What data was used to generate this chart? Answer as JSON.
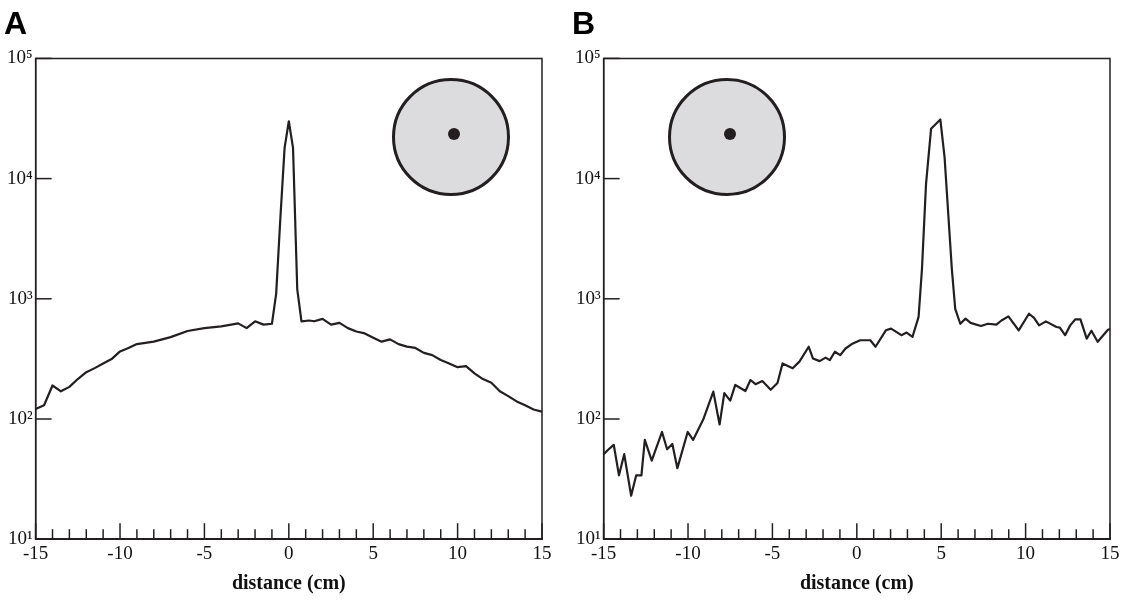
{
  "chart_data": [
    {
      "type": "line",
      "title": "A",
      "xlabel": "distance (cm)",
      "xlim": [
        -15,
        15
      ],
      "ylim": [
        10,
        100000
      ],
      "log": "y",
      "grid": false,
      "legend": false,
      "marker": "none",
      "line_style": "solid",
      "xticks": [
        -15,
        {
          "value": -14,
          "label": null
        },
        {
          "value": -13,
          "label": null
        },
        {
          "value": -12,
          "label": null
        },
        {
          "value": -11,
          "label": null
        },
        -10,
        {
          "value": -9,
          "label": null
        },
        {
          "value": -8,
          "label": null
        },
        {
          "value": -7,
          "label": null
        },
        {
          "value": -6,
          "label": null
        },
        -5,
        {
          "value": -4,
          "label": null
        },
        {
          "value": -3,
          "label": null
        },
        {
          "value": -2,
          "label": null
        },
        {
          "value": -1,
          "label": null
        },
        0,
        {
          "value": 1,
          "label": null
        },
        {
          "value": 2,
          "label": null
        },
        {
          "value": 3,
          "label": null
        },
        {
          "value": 4,
          "label": null
        },
        5,
        {
          "value": 6,
          "label": null
        },
        {
          "value": 7,
          "label": null
        },
        {
          "value": 8,
          "label": null
        },
        {
          "value": 9,
          "label": null
        },
        10,
        {
          "value": 11,
          "label": null
        },
        {
          "value": 12,
          "label": null
        },
        {
          "value": 13,
          "label": null
        },
        {
          "value": 14,
          "label": null
        },
        15
      ],
      "yticks": [
        {
          "value": 10,
          "label": "10¹"
        },
        {
          "value": 100,
          "label": "10²"
        },
        {
          "value": 1000,
          "label": "10³"
        },
        {
          "value": 10000,
          "label": "10⁴"
        },
        {
          "value": 100000,
          "label": "10⁵"
        }
      ],
      "series": [
        {
          "color": "#231f20",
          "x": [
            -15,
            -14.5,
            -14,
            -13.5,
            -13,
            -12.5,
            -12,
            -11.5,
            -11,
            -10.5,
            -10,
            -9.5,
            -9,
            -8,
            -7,
            -6,
            -5,
            -4,
            -3,
            -2.5,
            -2,
            -1.5,
            -1,
            -0.75,
            -0.5,
            -0.25,
            0,
            0.25,
            0.5,
            0.75,
            1.2,
            1.5,
            2,
            2.5,
            3,
            3.5,
            4,
            4.5,
            5,
            5.5,
            6,
            6.5,
            7,
            7.5,
            8,
            8.5,
            9,
            9.5,
            10,
            10.5,
            11,
            11.5,
            12,
            12.5,
            13,
            13.5,
            14,
            14.5,
            15
          ],
          "values": [
            121,
            130,
            190,
            170,
            185,
            215,
            245,
            265,
            290,
            315,
            365,
            390,
            420,
            440,
            480,
            540,
            570,
            590,
            625,
            570,
            650,
            610,
            620,
            1100,
            4700,
            18000,
            30000,
            18000,
            1200,
            650,
            660,
            650,
            680,
            610,
            630,
            570,
            535,
            515,
            475,
            440,
            460,
            420,
            400,
            390,
            355,
            340,
            310,
            290,
            270,
            275,
            240,
            215,
            200,
            170,
            155,
            140,
            130,
            120,
            115
          ]
        }
      ]
    },
    {
      "type": "line",
      "title": "B",
      "xlabel": "distance (cm)",
      "xlim": [
        -15,
        15
      ],
      "ylim": [
        10,
        100000
      ],
      "log": "y",
      "grid": false,
      "legend": false,
      "marker": "none",
      "line_style": "solid",
      "xticks": [
        -15,
        {
          "value": -14,
          "label": null
        },
        {
          "value": -13,
          "label": null
        },
        {
          "value": -12,
          "label": null
        },
        {
          "value": -11,
          "label": null
        },
        -10,
        {
          "value": -9,
          "label": null
        },
        {
          "value": -8,
          "label": null
        },
        {
          "value": -7,
          "label": null
        },
        {
          "value": -6,
          "label": null
        },
        -5,
        {
          "value": -4,
          "label": null
        },
        {
          "value": -3,
          "label": null
        },
        {
          "value": -2,
          "label": null
        },
        {
          "value": -1,
          "label": null
        },
        0,
        {
          "value": 1,
          "label": null
        },
        {
          "value": 2,
          "label": null
        },
        {
          "value": 3,
          "label": null
        },
        {
          "value": 4,
          "label": null
        },
        5,
        {
          "value": 6,
          "label": null
        },
        {
          "value": 7,
          "label": null
        },
        {
          "value": 8,
          "label": null
        },
        {
          "value": 9,
          "label": null
        },
        10,
        {
          "value": 11,
          "label": null
        },
        {
          "value": 12,
          "label": null
        },
        {
          "value": 13,
          "label": null
        },
        {
          "value": 14,
          "label": null
        },
        15
      ],
      "yticks": [
        {
          "value": 10,
          "label": "10¹"
        },
        {
          "value": 100,
          "label": "10²"
        },
        {
          "value": 1000,
          "label": "10³"
        },
        {
          "value": 10000,
          "label": "10⁴"
        },
        {
          "value": 100000,
          "label": "10⁵"
        }
      ],
      "series": [
        {
          "color": "#231f20",
          "x": [
            -15,
            -14.7,
            -14.4,
            -14.09,
            -13.78,
            -13.37,
            -13.07,
            -12.76,
            -12.56,
            -12.15,
            -11.54,
            -11.24,
            -10.93,
            -10.63,
            -10.02,
            -9.7,
            -9.1,
            -8.5,
            -8.13,
            -7.85,
            -7.5,
            -7.2,
            -6.6,
            -6.3,
            -6,
            -5.6,
            -5.1,
            -4.7,
            -4.4,
            -3.8,
            -3.4,
            -2.85,
            -2.6,
            -2.2,
            -1.85,
            -1.6,
            -1.3,
            -0.98,
            -0.67,
            -0.3,
            0.2,
            0.8,
            1.11,
            1.72,
            2.03,
            2.64,
            2.95,
            3.3,
            3.66,
            3.86,
            4.1,
            4.4,
            4.95,
            5.2,
            5.63,
            5.83,
            6.13,
            6.44,
            6.74,
            7.35,
            7.77,
            8.27,
            8.57,
            8.98,
            9.59,
            10.2,
            10.5,
            10.8,
            11.2,
            11.83,
            12.03,
            12.34,
            12.64,
            12.95,
            13.25,
            13.62,
            13.9,
            14.27,
            14.88,
            15
          ],
          "values": [
            51,
            56,
            61,
            34,
            51,
            23,
            34,
            34,
            67,
            45,
            78,
            56,
            62,
            39,
            78,
            67,
            99,
            169,
            90,
            164,
            142,
            192,
            171,
            211,
            195,
            207,
            175,
            199,
            290,
            264,
            300,
            399,
            319,
            303,
            324,
            309,
            363,
            340,
            386,
            420,
            452,
            452,
            399,
            547,
            565,
            498,
            524,
            483,
            708,
            1770,
            9000,
            26000,
            31000,
            15000,
            1770,
            826,
            620,
            684,
            630,
            594,
            620,
            610,
            660,
            714,
            547,
            751,
            693,
            601,
            649,
            583,
            575,
            498,
            601,
            675,
            675,
            466,
            542,
            439,
            553,
            560
          ]
        }
      ]
    }
  ]
}
